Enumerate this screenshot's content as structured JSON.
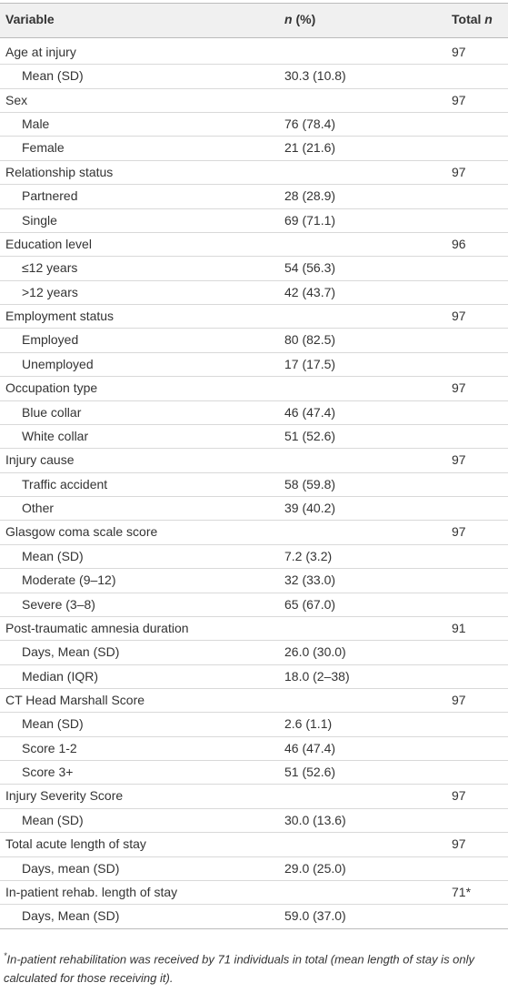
{
  "header": {
    "variable": "Variable",
    "n_pct": {
      "italic": "n",
      "rest": " (%)"
    },
    "total": {
      "rest": "Total ",
      "italic": "n"
    }
  },
  "rows": [
    [
      "Age at injury",
      null,
      "97"
    ],
    [
      "Mean (SD)",
      "30.3 (10.8)",
      null
    ],
    [
      "Sex",
      null,
      "97"
    ],
    [
      "Male",
      "76 (78.4)",
      null
    ],
    [
      "Female",
      "21 (21.6)",
      null
    ],
    [
      "Relationship status",
      null,
      "97"
    ],
    [
      "Partnered",
      "28 (28.9)",
      null
    ],
    [
      "Single",
      "69 (71.1)",
      null
    ],
    [
      "Education level",
      null,
      "96"
    ],
    [
      "≤12 years",
      "54 (56.3)",
      null
    ],
    [
      ">12 years",
      "42 (43.7)",
      null
    ],
    [
      "Employment status",
      null,
      "97"
    ],
    [
      "Employed",
      "80 (82.5)",
      null
    ],
    [
      "Unemployed",
      "17 (17.5)",
      null
    ],
    [
      "Occupation type",
      null,
      "97"
    ],
    [
      "Blue collar",
      "46 (47.4)",
      null
    ],
    [
      "White collar",
      "51 (52.6)",
      null
    ],
    [
      "Injury cause",
      null,
      "97"
    ],
    [
      "Traffic accident",
      "58 (59.8)",
      null
    ],
    [
      "Other",
      "39 (40.2)",
      null
    ],
    [
      "Glasgow coma scale score",
      null,
      "97"
    ],
    [
      "Mean (SD)",
      "7.2 (3.2)",
      null
    ],
    [
      "Moderate (9–12)",
      "32 (33.0)",
      null
    ],
    [
      "Severe (3–8)",
      "65 (67.0)",
      null
    ],
    [
      "Post-traumatic amnesia duration",
      null,
      "91"
    ],
    [
      "Days, Mean (SD)",
      "26.0 (30.0)",
      null
    ],
    [
      "Median (IQR)",
      "18.0 (2–38)",
      null
    ],
    [
      "CT Head Marshall Score",
      null,
      "97"
    ],
    [
      "Mean (SD)",
      "2.6 (1.1)",
      null
    ],
    [
      "Score 1-2",
      "46 (47.4)",
      null
    ],
    [
      "Score 3+",
      "51 (52.6)",
      null
    ],
    [
      "Injury Severity Score",
      null,
      "97"
    ],
    [
      "Mean (SD)",
      "30.0 (13.6)",
      null
    ],
    [
      "Total acute length of stay",
      null,
      "97"
    ],
    [
      "Days, mean (SD)",
      "29.0 (25.0)",
      null
    ],
    [
      "In-patient rehab. length of stay",
      null,
      "71*"
    ],
    [
      "Days, Mean (SD)",
      "59.0 (37.0)",
      null
    ]
  ],
  "footnote": {
    "mark": "*",
    "text": "In-patient rehabilitation was received by 71 individuals in total (mean length of stay is only calculated for those receiving it)."
  }
}
